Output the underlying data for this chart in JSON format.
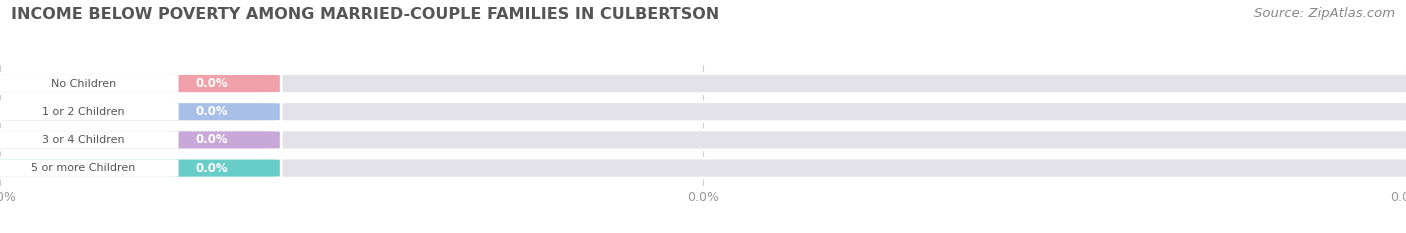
{
  "title": "INCOME BELOW POVERTY AMONG MARRIED-COUPLE FAMILIES IN CULBERTSON",
  "source": "Source: ZipAtlas.com",
  "categories": [
    "No Children",
    "1 or 2 Children",
    "3 or 4 Children",
    "5 or more Children"
  ],
  "values": [
    0.0,
    0.0,
    0.0,
    0.0
  ],
  "bar_colors": [
    "#f0a0a8",
    "#a8c0e8",
    "#c8a8d8",
    "#68ccc8"
  ],
  "background_color": "#ffffff",
  "bar_bg_color": "#e2e2e8",
  "title_fontsize": 11.5,
  "source_fontsize": 9.5,
  "label_text_color": "#555555",
  "value_text_color": "#ffffff",
  "tick_label_color": "#999999",
  "grid_color": "#cccccc",
  "white_circle_color": "#ffffff"
}
